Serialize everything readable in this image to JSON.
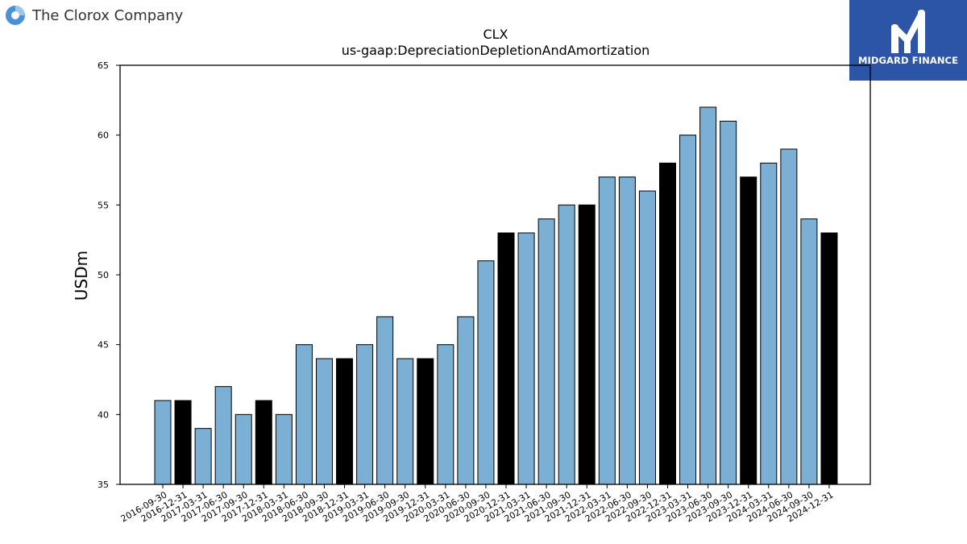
{
  "company": {
    "name": "The Clorox Company"
  },
  "publisher": {
    "name": "MIDGARD FINANCE"
  },
  "colors": {
    "regular": "#7bafd4",
    "year_end": "#000000"
  },
  "chart_data": {
    "type": "bar",
    "title": "CLX",
    "subtitle": "us-gaap:DepreciationDepletionAndAmortization",
    "xlabel": "",
    "ylabel": "USDm",
    "ylim": [
      35,
      65
    ],
    "yticks": [
      35,
      40,
      45,
      50,
      55,
      60,
      65
    ],
    "grid": false,
    "categories": [
      "2016-09-30",
      "2016-12-31",
      "2017-03-31",
      "2017-06-30",
      "2017-09-30",
      "2017-12-31",
      "2018-03-31",
      "2018-06-30",
      "2018-09-30",
      "2018-12-31",
      "2019-03-31",
      "2019-06-30",
      "2019-09-30",
      "2019-12-31",
      "2020-03-31",
      "2020-06-30",
      "2020-09-30",
      "2020-12-31",
      "2021-03-31",
      "2021-06-30",
      "2021-09-30",
      "2021-12-31",
      "2022-03-31",
      "2022-06-30",
      "2022-09-30",
      "2022-12-31",
      "2023-03-31",
      "2023-06-30",
      "2023-09-30",
      "2023-12-31",
      "2024-03-31",
      "2024-06-30",
      "2024-09-30",
      "2024-12-31"
    ],
    "values": [
      41,
      41,
      39,
      42,
      40,
      41,
      40,
      45,
      44,
      44,
      45,
      47,
      44,
      44,
      45,
      47,
      51,
      53,
      53,
      54,
      55,
      55,
      57,
      57,
      56,
      58,
      60,
      62,
      61,
      57,
      58,
      59,
      54,
      53
    ]
  }
}
